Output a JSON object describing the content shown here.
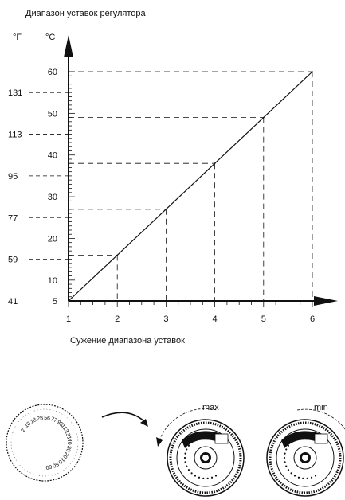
{
  "chart_data": {
    "type": "line",
    "title": "Диапазон уставок регулятора",
    "xlabel": "Сужение диапазона уставок",
    "unit_f": "°F",
    "unit_c": "°C",
    "x_ticks": [
      "1",
      "2",
      "3",
      "4",
      "5",
      "6"
    ],
    "xlim": [
      1,
      6
    ],
    "c_ticks": [
      "5",
      "10",
      "20",
      "30",
      "40",
      "50",
      "60"
    ],
    "c_tick_values": [
      5,
      10,
      20,
      30,
      40,
      50,
      60
    ],
    "f_ticks": [
      "41",
      "59",
      "77",
      "95",
      "113",
      "131"
    ],
    "f_tick_values_c": [
      5,
      15,
      25,
      35,
      45,
      55
    ],
    "ylim": [
      5,
      60
    ],
    "series": [
      {
        "x": [
          1,
          2,
          3,
          4,
          5,
          6
        ],
        "y": [
          5,
          16,
          27,
          38,
          49,
          60
        ]
      }
    ]
  },
  "illustration": {
    "max_label": "max",
    "min_label": "min",
    "knob_scale": [
      "2",
      "10",
      "18",
      "28",
      "56",
      "77",
      "95",
      "113",
      "131",
      "40",
      "30",
      "20",
      "10",
      "50",
      "60"
    ]
  },
  "colors": {
    "ink": "#111111",
    "background": "#ffffff"
  }
}
